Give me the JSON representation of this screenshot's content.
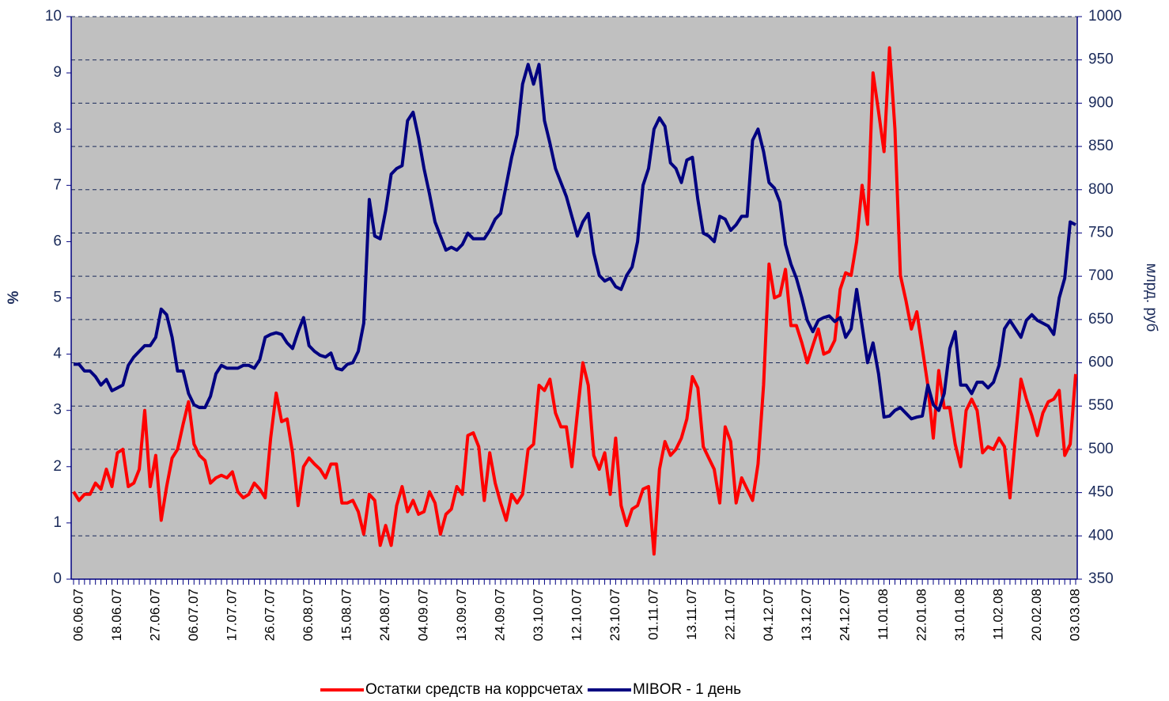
{
  "chart_data": {
    "type": "line",
    "categories": [
      null,
      "06.06.07",
      null,
      null,
      null,
      null,
      null,
      null,
      "18.06.07",
      null,
      null,
      null,
      null,
      null,
      null,
      "27.06.07",
      null,
      null,
      null,
      null,
      null,
      null,
      "06.07.07",
      null,
      null,
      null,
      null,
      null,
      null,
      "17.07.07",
      null,
      null,
      null,
      null,
      null,
      null,
      "26.07.07",
      null,
      null,
      null,
      null,
      null,
      null,
      "06.08.07",
      null,
      null,
      null,
      null,
      null,
      null,
      "15.08.07",
      null,
      null,
      null,
      null,
      null,
      null,
      "24.08.07",
      null,
      null,
      null,
      null,
      null,
      null,
      "04.09.07",
      null,
      null,
      null,
      null,
      null,
      null,
      "13.09.07",
      null,
      null,
      null,
      null,
      null,
      null,
      "24.09.07",
      null,
      null,
      null,
      null,
      null,
      null,
      "03.10.07",
      null,
      null,
      null,
      null,
      null,
      null,
      "12.10.07",
      null,
      null,
      null,
      null,
      null,
      null,
      "23.10.07",
      null,
      null,
      null,
      null,
      null,
      null,
      "01.11.07",
      null,
      null,
      null,
      null,
      null,
      null,
      "13.11.07",
      null,
      null,
      null,
      null,
      null,
      null,
      "22.11.07",
      null,
      null,
      null,
      null,
      null,
      null,
      "04.12.07",
      null,
      null,
      null,
      null,
      null,
      null,
      "13.12.07",
      null,
      null,
      null,
      null,
      null,
      null,
      "24.12.07",
      null,
      null,
      null,
      null,
      null,
      null,
      "11.01.08",
      null,
      null,
      null,
      null,
      null,
      null,
      "22.01.08",
      null,
      null,
      null,
      null,
      null,
      null,
      "31.01.08",
      null,
      null,
      null,
      null,
      null,
      null,
      "11.02.08",
      null,
      null,
      null,
      null,
      null,
      null,
      "20.02.08",
      null,
      null,
      null,
      null,
      null,
      null,
      "03.03.08"
    ],
    "series": [
      {
        "name": "Остатки средств на коррсчетах",
        "color": "#ff0000",
        "axis": "y2",
        "values": [
          451,
          441,
          448,
          448,
          461,
          454,
          477,
          457,
          496,
          500,
          457,
          461,
          477,
          545,
          457,
          493,
          418,
          457,
          490,
          500,
          529,
          555,
          506,
          493,
          487,
          461,
          467,
          470,
          467,
          474,
          451,
          444,
          448,
          461,
          454,
          444,
          513,
          565,
          532,
          535,
          496,
          435,
          480,
          490,
          483,
          477,
          467,
          483,
          483,
          438,
          438,
          441,
          428,
          402,
          448,
          441,
          389,
          412,
          389,
          435,
          457,
          428,
          441,
          425,
          428,
          451,
          438,
          402,
          425,
          431,
          457,
          448,
          516,
          519,
          503,
          441,
          496,
          461,
          438,
          418,
          448,
          438,
          448,
          500,
          506,
          574,
          568,
          581,
          542,
          526,
          526,
          480,
          542,
          600,
          574,
          493,
          477,
          496,
          448,
          513,
          435,
          412,
          431,
          435,
          454,
          457,
          379,
          477,
          509,
          493,
          500,
          513,
          535,
          584,
          571,
          503,
          490,
          477,
          438,
          526,
          509,
          438,
          467,
          454,
          441,
          483,
          574,
          714,
          675,
          678,
          708,
          643,
          643,
          623,
          600,
          620,
          639,
          610,
          613,
          626,
          685,
          704,
          701,
          740,
          805,
          760,
          935,
          890,
          844,
          964,
          870,
          701,
          672,
          639,
          659,
          617,
          574,
          513,
          591,
          548,
          548,
          506,
          480,
          545,
          558,
          545,
          496,
          503,
          500,
          513,
          503,
          444,
          513,
          581,
          558,
          539,
          516,
          542,
          555,
          558,
          568,
          493,
          506,
          587
        ]
      },
      {
        "name": "MIBOR - 1 день",
        "color": "#000080",
        "axis": "y",
        "values": [
          3.82,
          3.82,
          3.7,
          3.7,
          3.6,
          3.45,
          3.55,
          3.35,
          3.4,
          3.45,
          3.8,
          3.95,
          4.05,
          4.15,
          4.15,
          4.3,
          4.8,
          4.7,
          4.3,
          3.7,
          3.7,
          3.3,
          3.1,
          3.05,
          3.05,
          3.25,
          3.65,
          3.8,
          3.75,
          3.75,
          3.75,
          3.8,
          3.8,
          3.75,
          3.9,
          4.3,
          4.35,
          4.38,
          4.35,
          4.2,
          4.1,
          4.4,
          4.65,
          4.15,
          4.05,
          3.98,
          3.95,
          4.02,
          3.75,
          3.72,
          3.82,
          3.85,
          4.05,
          4.55,
          6.75,
          6.1,
          6.05,
          6.55,
          7.2,
          7.3,
          7.35,
          8.15,
          8.3,
          7.85,
          7.3,
          6.85,
          6.35,
          6.1,
          5.85,
          5.9,
          5.85,
          5.95,
          6.15,
          6.05,
          6.05,
          6.05,
          6.2,
          6.4,
          6.5,
          7.0,
          7.5,
          7.9,
          8.8,
          9.15,
          8.8,
          9.15,
          8.15,
          7.75,
          7.3,
          7.05,
          6.8,
          6.45,
          6.1,
          6.35,
          6.5,
          5.8,
          5.4,
          5.3,
          5.35,
          5.2,
          5.15,
          5.4,
          5.55,
          6.0,
          7.0,
          7.3,
          8.0,
          8.2,
          8.05,
          7.4,
          7.3,
          7.05,
          7.45,
          7.5,
          6.75,
          6.15,
          6.1,
          6.0,
          6.45,
          6.4,
          6.2,
          6.3,
          6.45,
          6.45,
          7.8,
          8.0,
          7.6,
          7.05,
          6.95,
          6.7,
          5.95,
          5.6,
          5.35,
          5.0,
          4.6,
          4.4,
          4.6,
          4.65,
          4.68,
          4.58,
          4.65,
          4.3,
          4.45,
          5.15,
          4.5,
          3.85,
          4.2,
          3.65,
          2.88,
          2.9,
          3.0,
          3.05,
          2.95,
          2.85,
          2.88,
          2.9,
          3.45,
          3.1,
          3.0,
          3.3,
          4.1,
          4.4,
          3.45,
          3.45,
          3.3,
          3.5,
          3.5,
          3.4,
          3.5,
          3.8,
          4.45,
          4.6,
          4.45,
          4.3,
          4.6,
          4.7,
          4.6,
          4.55,
          4.5,
          4.35,
          5.0,
          5.35,
          6.35,
          6.3
        ]
      }
    ],
    "y_label": "%",
    "y2_label": "млрд. руб",
    "ylim": [
      0,
      10
    ],
    "yticks": [
      0,
      1,
      2,
      3,
      4,
      5,
      6,
      7,
      8,
      9,
      10
    ],
    "y2lim": [
      350,
      1000
    ],
    "y2ticks": [
      350,
      400,
      450,
      500,
      550,
      600,
      650,
      700,
      750,
      800,
      850,
      900,
      950,
      1000
    ],
    "grid": "y2",
    "legend": "bottom"
  }
}
